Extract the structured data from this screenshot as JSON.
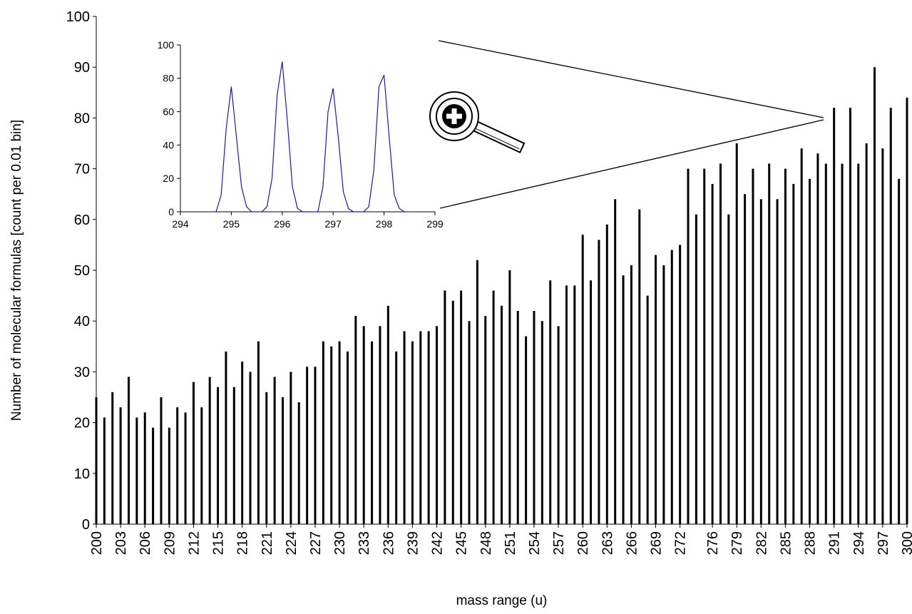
{
  "chart_data": [
    {
      "type": "bar",
      "y_label": "Number of molecular formulas [count per 0.01 bin]",
      "x_label": "mass range (u)",
      "color": "#000000",
      "xlim": [
        200,
        300
      ],
      "ylim": [
        0,
        100
      ],
      "yticks": [
        0,
        10,
        20,
        30,
        40,
        50,
        60,
        70,
        80,
        90,
        100
      ],
      "xticks": [
        200,
        203,
        206,
        209,
        212,
        215,
        218,
        221,
        224,
        227,
        230,
        233,
        236,
        239,
        242,
        245,
        248,
        251,
        254,
        257,
        260,
        263,
        266,
        269,
        272,
        276,
        279,
        282,
        285,
        288,
        291,
        294,
        297,
        300
      ],
      "x": [
        200,
        201,
        202,
        203,
        204,
        205,
        206,
        207,
        208,
        209,
        210,
        211,
        212,
        213,
        214,
        215,
        216,
        217,
        218,
        219,
        220,
        221,
        222,
        223,
        224,
        225,
        226,
        227,
        228,
        229,
        230,
        231,
        232,
        233,
        234,
        235,
        236,
        237,
        238,
        239,
        240,
        241,
        242,
        243,
        244,
        245,
        246,
        247,
        248,
        249,
        250,
        251,
        252,
        253,
        254,
        255,
        256,
        257,
        258,
        259,
        260,
        261,
        262,
        263,
        264,
        265,
        266,
        267,
        268,
        269,
        270,
        271,
        272,
        273,
        274,
        275,
        276,
        277,
        278,
        279,
        280,
        281,
        282,
        283,
        284,
        285,
        286,
        287,
        288,
        289,
        290,
        291,
        292,
        293,
        294,
        295,
        296,
        297,
        298,
        299,
        300
      ],
      "values": [
        25,
        21,
        26,
        23,
        29,
        21,
        22,
        19,
        25,
        19,
        23,
        22,
        28,
        23,
        29,
        27,
        34,
        27,
        32,
        30,
        36,
        26,
        29,
        25,
        30,
        24,
        31,
        31,
        36,
        35,
        36,
        34,
        41,
        39,
        36,
        39,
        43,
        34,
        38,
        36,
        38,
        38,
        39,
        46,
        44,
        46,
        40,
        52,
        41,
        46,
        43,
        50,
        42,
        37,
        42,
        40,
        48,
        39,
        47,
        47,
        57,
        48,
        56,
        59,
        64,
        49,
        51,
        62,
        45,
        53,
        51,
        54,
        55,
        70,
        61,
        70,
        67,
        71,
        61,
        75,
        65,
        70,
        64,
        71,
        64,
        70,
        67,
        74,
        68,
        73,
        71,
        82,
        71,
        82,
        71,
        75,
        90,
        74,
        82,
        68,
        84
      ]
    },
    {
      "type": "line",
      "color": "#1c1c8c",
      "xlim": [
        294,
        299
      ],
      "ylim": [
        0,
        100
      ],
      "yticks": [
        0,
        20,
        40,
        60,
        80,
        100
      ],
      "xticks": [
        294,
        295,
        296,
        297,
        298,
        299
      ],
      "x": [
        294.7,
        294.8,
        294.9,
        295.0,
        295.1,
        295.2,
        295.3,
        295.4,
        295.5,
        295.6,
        295.7,
        295.8,
        295.9,
        296.0,
        296.1,
        296.2,
        296.3,
        296.4,
        296.5,
        296.6,
        296.7,
        296.8,
        296.9,
        297.0,
        297.1,
        297.2,
        297.3,
        297.4,
        297.5,
        297.6,
        297.7,
        297.8,
        297.9,
        298.0,
        298.1,
        298.2,
        298.3,
        298.4
      ],
      "values": [
        0,
        10,
        50,
        75,
        45,
        15,
        3,
        0,
        0,
        0,
        3,
        20,
        70,
        90,
        55,
        15,
        2,
        0,
        0,
        0,
        0,
        15,
        60,
        74,
        45,
        12,
        2,
        0,
        0,
        0,
        3,
        25,
        75,
        82,
        45,
        10,
        2,
        0
      ]
    }
  ]
}
